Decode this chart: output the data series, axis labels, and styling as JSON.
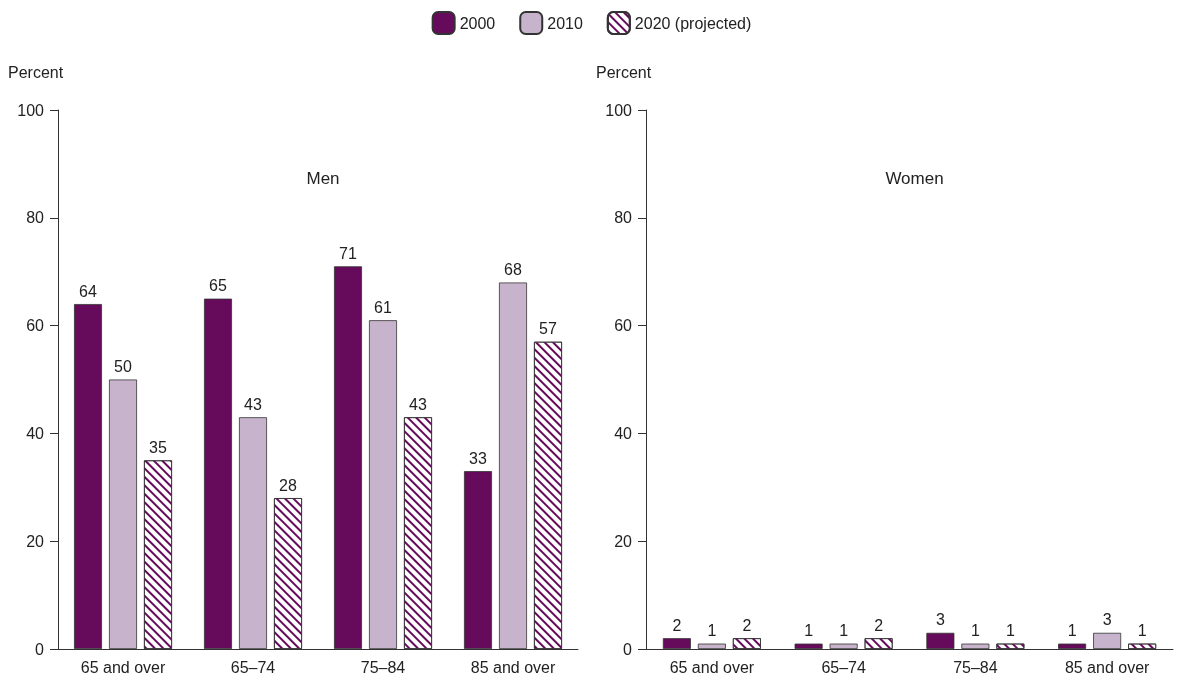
{
  "chart_data": [
    {
      "type": "bar",
      "title": "Men",
      "ylabel": "Percent",
      "categories": [
        "65 and over",
        "65–74",
        "75–84",
        "85 and over"
      ],
      "ylim": [
        0,
        100
      ],
      "yticks": [
        0,
        20,
        40,
        60,
        80,
        100
      ],
      "grid": false,
      "legend": "top",
      "data_labels": true,
      "series": [
        {
          "name": "2000",
          "color": "#660a5c",
          "values": [
            64,
            65,
            71,
            33
          ]
        },
        {
          "name": "2010",
          "color": "#c8b3cc",
          "values": [
            50,
            43,
            61,
            68
          ]
        },
        {
          "name": "2020 (projected)",
          "color": "#ffffff",
          "values": [
            35,
            28,
            43,
            57
          ]
        }
      ]
    },
    {
      "type": "bar",
      "title": "Women",
      "ylabel": "Percent",
      "categories": [
        "65 and over",
        "65–74",
        "75–84",
        "85 and over"
      ],
      "ylim": [
        0,
        100
      ],
      "yticks": [
        0,
        20,
        40,
        60,
        80,
        100
      ],
      "grid": false,
      "legend": false,
      "data_labels": true,
      "series": [
        {
          "color": "#660a5c",
          "values": [
            2,
            1,
            3,
            1
          ]
        },
        {
          "color": "#c8b3cc",
          "values": [
            1,
            1,
            1,
            3
          ]
        },
        {
          "color": "#ffffff",
          "values": [
            2,
            2,
            1,
            1
          ]
        }
      ]
    }
  ]
}
